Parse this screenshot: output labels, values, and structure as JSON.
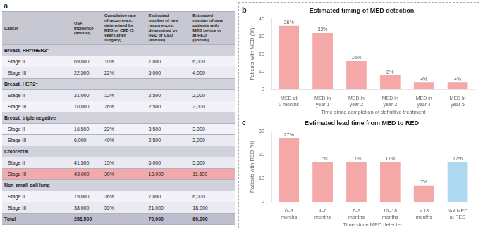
{
  "chart_data": [
    {
      "type": "table",
      "annotations": [
        "a"
      ],
      "ylabel": "Cancer",
      "categories": [
        "Breast, HR⁺/HER2⁻",
        "Stage II",
        "Stage III",
        "Breast, HER2⁺",
        "Stage II",
        "Stage III",
        "Breast, triple negative",
        "Stage II",
        "Stage III",
        "Colorectal",
        "Stage II",
        "Stage III",
        "Non-small-cell lung",
        "Stage II",
        "Stage III",
        "Total"
      ],
      "colors": [
        "#d2d2dc",
        "#f2f2f8",
        "#eaeaf2",
        "#d2d2dc",
        "#eaeaf2",
        "#f2f2f8",
        "#d2d2dc",
        "#f2f2f8",
        "#eaeaf2",
        "#d2d2dc",
        "#eaeaf2",
        "#f2aaaa",
        "#d2d2dc",
        "#f2f2f8",
        "#eaeaf2",
        "#bebece"
      ],
      "series": [
        {
          "name": "USA\nincidence\n(annual)",
          "values": [
            null,
            69000,
            22500,
            null,
            21000,
            10000,
            null,
            16500,
            6000,
            null,
            41500,
            43000,
            null,
            19000,
            38000,
            286500
          ],
          "value_labels": [
            null,
            "69,000",
            "22,500",
            null,
            "21,000",
            "10,000",
            null,
            "16,500",
            "6,000",
            null,
            "41,500",
            "43,000",
            null,
            "19,000",
            "38,000",
            "286,500"
          ]
        },
        {
          "name": "Cumulative rate\nof recurrence,\ndetermined by\nRED or CED (5\nyears after\nsurgery)",
          "values": [
            null,
            10,
            22,
            null,
            12,
            26,
            null,
            22,
            40,
            null,
            15,
            30,
            null,
            36,
            55,
            null
          ],
          "value_labels": [
            null,
            "10%",
            "22%",
            null,
            "12%",
            "26%",
            null,
            "22%",
            "40%",
            null,
            "15%",
            "30%",
            null,
            "36%",
            "55%",
            null
          ]
        },
        {
          "name": "Estimated\nnumber of new\nrecurrences,\ndetermined by\nRED or CED\n(annual)",
          "values": [
            null,
            7000,
            5000,
            null,
            2500,
            2500,
            null,
            3500,
            2500,
            null,
            6000,
            13000,
            null,
            7000,
            21000,
            70000
          ],
          "value_labels": [
            null,
            "7,000",
            "5,000",
            null,
            "2,500",
            "2,500",
            null,
            "3,500",
            "2,500",
            null,
            "6,000",
            "13,000",
            null,
            "7,000",
            "21,000",
            "70,000"
          ]
        },
        {
          "name": "Estimated\nnumber of new\npatients with\nMED before or\nat RED\n(annual)",
          "values": [
            null,
            6000,
            4000,
            null,
            2000,
            2000,
            null,
            3000,
            2000,
            null,
            5500,
            11500,
            null,
            6000,
            18000,
            60000
          ],
          "value_labels": [
            null,
            "6,000",
            "4,000",
            null,
            "2,000",
            "2,000",
            null,
            "3,000",
            "2,000",
            null,
            "5,500",
            "11,500",
            null,
            "6,000",
            "18,000",
            "60,000"
          ]
        }
      ]
    },
    {
      "type": "bar",
      "annotations": [
        "b"
      ],
      "title": "Estimated timing of MED detection",
      "xlabel": "Time since completion of definitive treatment",
      "ylabel": "Patients with MED (%)",
      "categories": [
        "MED at\n0 months",
        "MED in\nyear 1",
        "MED in\nyear 2",
        "MED in\nyear 3",
        "MED in\nyear 4",
        "MED in\nyear 5"
      ],
      "values": [
        36,
        32,
        16,
        8,
        4,
        4
      ],
      "value_labels": [
        "36%",
        "32%",
        "16%",
        "8%",
        "4%",
        "4%"
      ],
      "data_labels": true,
      "color": "#f5a8a8",
      "ylim": [
        0,
        40
      ],
      "yticks": [
        0,
        10,
        20,
        30,
        40
      ],
      "grid": false
    },
    {
      "type": "bar",
      "annotations": [
        "c"
      ],
      "title": "Estimated lead time from MED to RED",
      "xlabel": "Time since MED detected",
      "ylabel": "Patients with RED (%)",
      "categories": [
        "0–3\nmonths",
        "4–6\nmonths",
        "7–9\nmonths",
        "10–18\nmonths",
        "> 18\nmonths",
        "Not MED\nat RED"
      ],
      "values": [
        27,
        17,
        17,
        17,
        7,
        17
      ],
      "value_labels": [
        "27%",
        "17%",
        "17%",
        "17%",
        "7%",
        "17%"
      ],
      "data_labels": true,
      "colors": [
        "#f5a8a8",
        "#f5a8a8",
        "#f5a8a8",
        "#f5a8a8",
        "#f5a8a8",
        "#aed8f0"
      ],
      "ylim": [
        0,
        30
      ],
      "yticks": [
        0,
        10,
        20,
        30
      ],
      "grid": false
    }
  ]
}
